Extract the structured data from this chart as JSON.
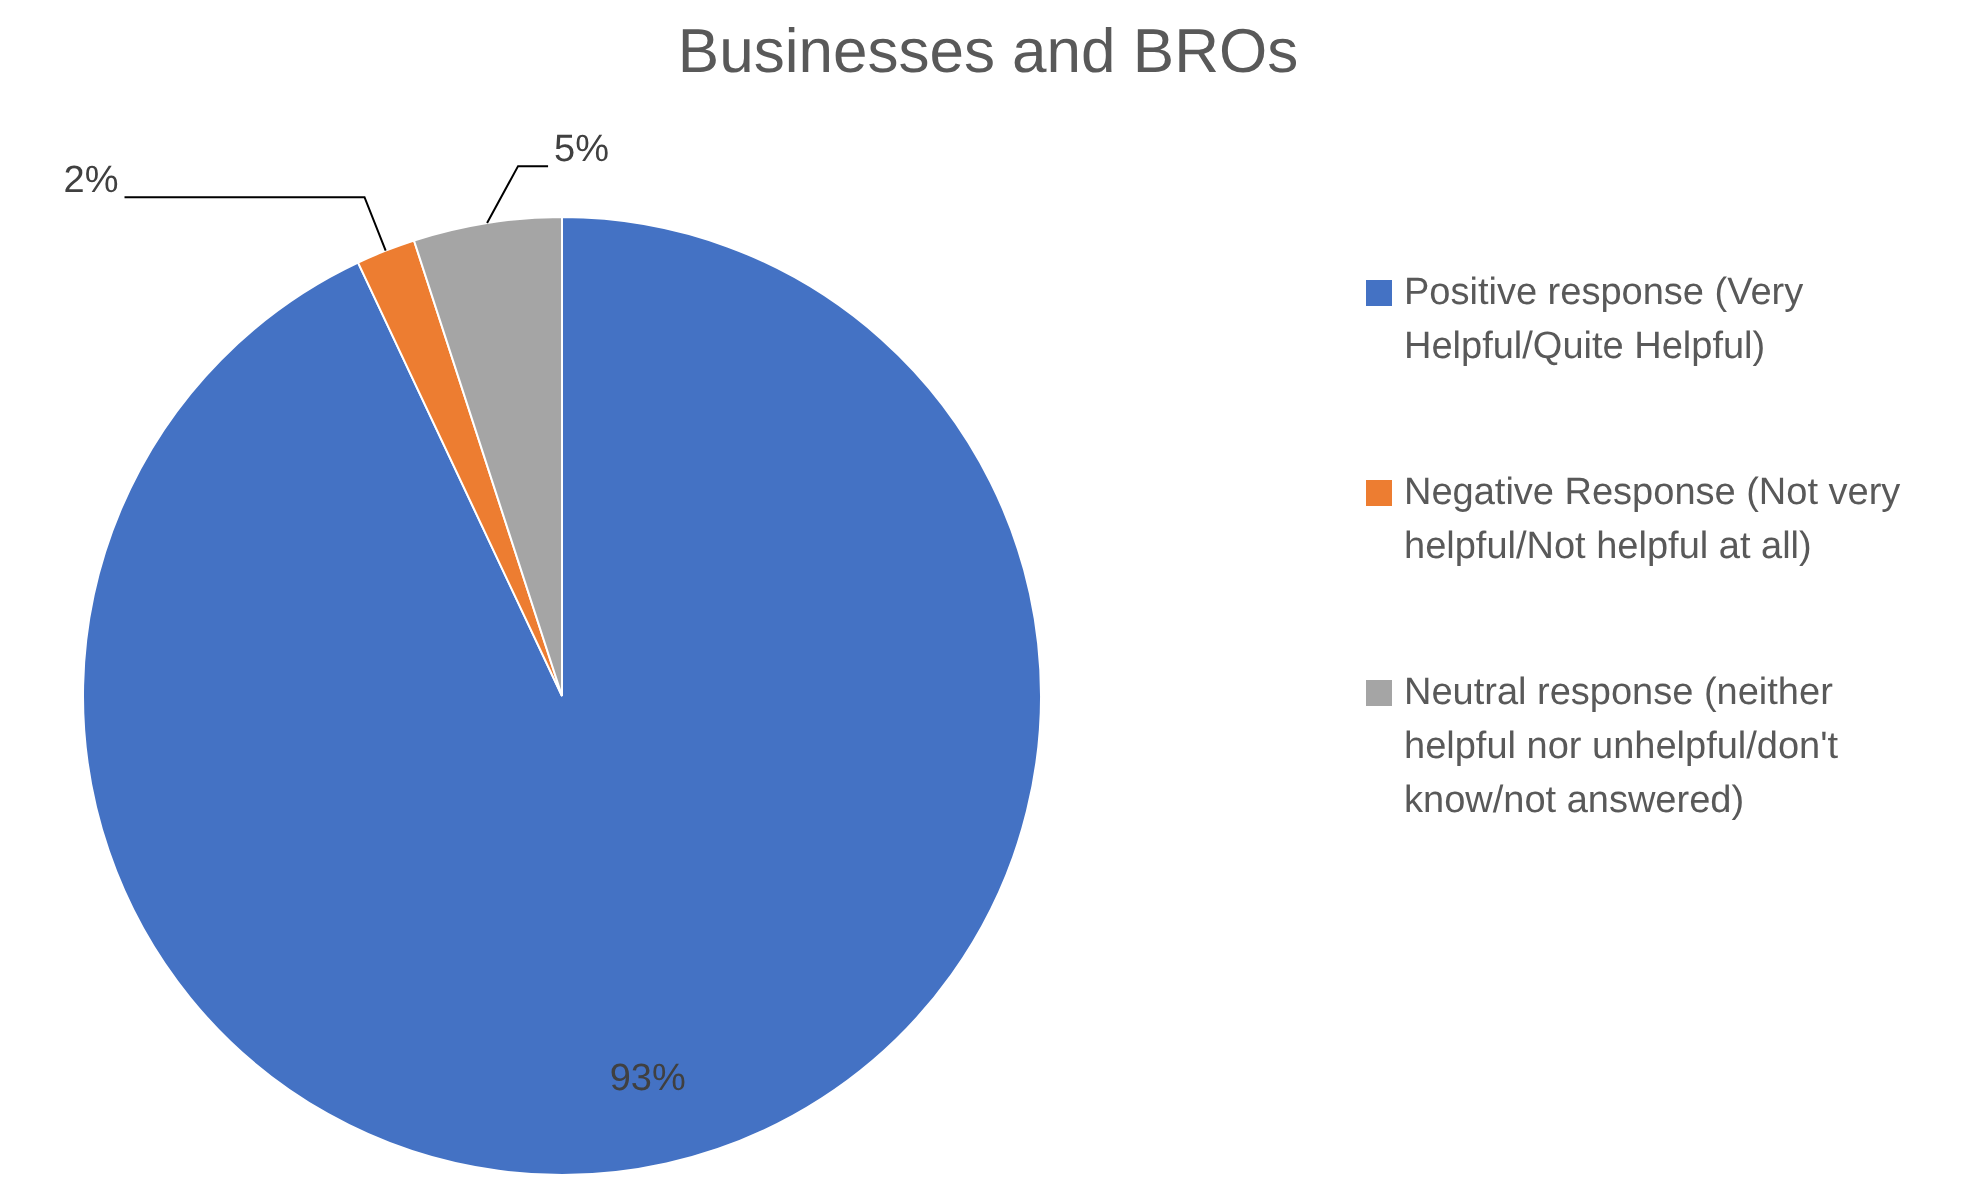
{
  "chart_data": {
    "type": "pie",
    "title": "Businesses and BROs",
    "categories": [
      "Positive response (Very Helpful/Quite Helpful)",
      "Negative Response (Not very helpful/Not helpful at all)",
      "Neutral response (neither helpful nor unhelpful/don't know/not answered)"
    ],
    "values": [
      93,
      2,
      5
    ],
    "colors": [
      "#4472c4",
      "#ed7d31",
      "#a5a5a5"
    ],
    "value_labels": [
      "93%",
      "2%",
      "5%"
    ],
    "legend": "right"
  }
}
